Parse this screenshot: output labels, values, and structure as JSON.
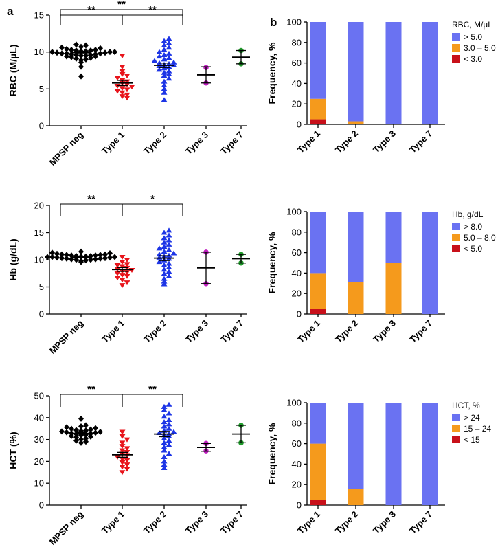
{
  "panel_labels": {
    "a": "a",
    "b": "b"
  },
  "colors": {
    "mpsp_neg": "#000000",
    "type1": "#e8141b",
    "type2": "#1d35e6",
    "type3": "#c01ec0",
    "type7": "#1f9a2a",
    "bar_high": "#6a72f2",
    "bar_mid": "#f59a1c",
    "bar_low": "#c8101a"
  },
  "chart_data": [
    {
      "type": "scatter",
      "panel": "a",
      "ylabel": "RBC (M/µL)",
      "ylim": [
        0,
        15
      ],
      "yticks": [
        0,
        5,
        10,
        15
      ],
      "categories": [
        "MPSP neg",
        "Type 1",
        "Type 2",
        "Type 3",
        "Type 7"
      ],
      "groups": [
        {
          "name": "MPSP neg",
          "marker": "diamond",
          "color": "#000000",
          "mean": 9.9,
          "sem": 0.15,
          "values": [
            6.7,
            8.0,
            8.6,
            8.9,
            9.0,
            9.1,
            9.2,
            9.3,
            9.4,
            9.4,
            9.5,
            9.5,
            9.6,
            9.6,
            9.7,
            9.7,
            9.8,
            9.8,
            9.8,
            9.9,
            9.9,
            10.0,
            10.0,
            10.0,
            10.1,
            10.1,
            10.2,
            10.2,
            10.3,
            10.3,
            10.4,
            10.5,
            10.6,
            10.7,
            10.9,
            11.0
          ]
        },
        {
          "name": "Type 1",
          "marker": "triangle-down",
          "color": "#e8141b",
          "mean": 5.8,
          "sem": 0.35,
          "values": [
            9.5,
            8.0,
            7.4,
            7.0,
            6.8,
            6.5,
            6.2,
            6.0,
            5.8,
            5.6,
            5.4,
            5.3,
            5.1,
            4.9,
            4.7,
            4.5,
            4.2,
            4.0,
            3.8
          ]
        },
        {
          "name": "Type 2",
          "marker": "triangle-up",
          "color": "#1d35e6",
          "mean": 8.2,
          "sem": 0.3,
          "values": [
            3.5,
            4.5,
            5.0,
            5.5,
            6.0,
            6.4,
            6.8,
            7.0,
            7.2,
            7.4,
            7.6,
            7.8,
            8.0,
            8.1,
            8.2,
            8.3,
            8.4,
            8.5,
            8.6,
            8.8,
            9.0,
            9.2,
            9.4,
            9.6,
            9.8,
            10.0,
            10.3,
            10.6,
            10.9,
            11.2,
            11.5,
            11.8
          ]
        },
        {
          "name": "Type 3",
          "marker": "circle",
          "color": "#c01ec0",
          "mean": 6.9,
          "error": 1.1,
          "values": [
            7.9,
            5.8
          ]
        },
        {
          "name": "Type 7",
          "marker": "circle",
          "color": "#1f9a2a",
          "mean": 9.3,
          "error": 0.9,
          "values": [
            10.2,
            8.4
          ]
        }
      ],
      "significance": [
        {
          "from": 0,
          "to": 1,
          "label": "**"
        },
        {
          "from": 1,
          "to": 2,
          "label": "**"
        },
        {
          "from": 0,
          "to": 2,
          "label": "**"
        }
      ]
    },
    {
      "type": "stacked_bar",
      "panel": "b",
      "ylabel": "Frequency, %",
      "ylim": [
        0,
        100
      ],
      "yticks": [
        0,
        20,
        40,
        60,
        80,
        100
      ],
      "categories": [
        "Type 1",
        "Type 2",
        "Type 3",
        "Type 7"
      ],
      "legend_title": "RBC, M/µL",
      "series": [
        {
          "name": "> 5.0",
          "color": "#6a72f2",
          "values": [
            75,
            97,
            100,
            100
          ]
        },
        {
          "name": "3.0 – 5.0",
          "color": "#f59a1c",
          "values": [
            20,
            3,
            0,
            0
          ]
        },
        {
          "name": "< 3.0",
          "color": "#c8101a",
          "values": [
            5,
            0,
            0,
            0
          ]
        }
      ]
    },
    {
      "type": "scatter",
      "panel": "a",
      "ylabel": "Hb (g/dL)",
      "ylim": [
        0,
        20
      ],
      "yticks": [
        0,
        5,
        10,
        15,
        20
      ],
      "categories": [
        "MPSP neg",
        "Type 1",
        "Type 2",
        "Type 3",
        "Type 7"
      ],
      "groups": [
        {
          "name": "MPSP neg",
          "marker": "diamond",
          "color": "#000000",
          "mean": 10.5,
          "sem": 0.12,
          "values": [
            9.6,
            9.8,
            9.9,
            10.0,
            10.0,
            10.1,
            10.1,
            10.2,
            10.2,
            10.3,
            10.3,
            10.4,
            10.4,
            10.5,
            10.5,
            10.5,
            10.6,
            10.6,
            10.7,
            10.7,
            10.8,
            10.8,
            10.9,
            10.9,
            11.0,
            11.0,
            11.1,
            11.2,
            11.3,
            11.5
          ]
        },
        {
          "name": "Type 1",
          "marker": "triangle-down",
          "color": "#e8141b",
          "mean": 8.2,
          "sem": 0.35,
          "values": [
            10.5,
            10.0,
            9.6,
            9.2,
            9.0,
            8.8,
            8.5,
            8.3,
            8.1,
            7.9,
            7.7,
            7.5,
            7.2,
            7.0,
            6.7,
            6.3,
            5.8,
            5.3
          ]
        },
        {
          "name": "Type 2",
          "marker": "triangle-up",
          "color": "#1d35e6",
          "mean": 10.3,
          "sem": 0.45,
          "values": [
            5.5,
            6.0,
            6.5,
            7.0,
            7.4,
            7.8,
            8.2,
            8.6,
            9.0,
            9.3,
            9.6,
            9.9,
            10.2,
            10.4,
            10.6,
            10.8,
            11.0,
            11.2,
            11.5,
            11.8,
            12.1,
            12.4,
            12.8,
            13.2,
            13.6,
            14.0,
            14.5,
            15.0,
            15.4
          ]
        },
        {
          "name": "Type 3",
          "marker": "circle",
          "color": "#c01ec0",
          "mean": 8.5,
          "error": 2.9,
          "values": [
            11.4,
            5.6
          ]
        },
        {
          "name": "Type 7",
          "marker": "circle",
          "color": "#1f9a2a",
          "mean": 10.2,
          "error": 0.8,
          "values": [
            11.0,
            9.4
          ]
        }
      ],
      "significance": [
        {
          "from": 0,
          "to": 1,
          "label": "**"
        },
        {
          "from": 1,
          "to": 2,
          "label": "*"
        }
      ]
    },
    {
      "type": "stacked_bar",
      "panel": "b",
      "ylabel": "Frequency, %",
      "ylim": [
        0,
        100
      ],
      "yticks": [
        0,
        20,
        40,
        60,
        80,
        100
      ],
      "categories": [
        "Type 1",
        "Type 2",
        "Type 3",
        "Type 7"
      ],
      "legend_title": "Hb, g/dL",
      "series": [
        {
          "name": "> 8.0",
          "color": "#6a72f2",
          "values": [
            60,
            69,
            50,
            100
          ]
        },
        {
          "name": "5.0 – 8.0",
          "color": "#f59a1c",
          "values": [
            35,
            31,
            50,
            0
          ]
        },
        {
          "name": "< 5.0",
          "color": "#c8101a",
          "values": [
            5,
            0,
            0,
            0
          ]
        }
      ]
    },
    {
      "type": "scatter",
      "panel": "a",
      "ylabel": "HCT (%)",
      "ylim": [
        0,
        50
      ],
      "yticks": [
        0,
        10,
        20,
        30,
        40,
        50
      ],
      "categories": [
        "MPSP neg",
        "Type 1",
        "Type 2",
        "Type 3",
        "Type 7"
      ],
      "groups": [
        {
          "name": "MPSP neg",
          "marker": "diamond",
          "color": "#000000",
          "mean": 32.8,
          "sem": 0.4,
          "values": [
            28.5,
            29.0,
            29.5,
            30.0,
            30.5,
            31.0,
            31.3,
            31.6,
            31.9,
            32.2,
            32.5,
            32.7,
            32.9,
            33.1,
            33.3,
            33.5,
            33.7,
            33.9,
            34.1,
            34.3,
            34.6,
            34.9,
            35.2,
            35.6,
            36.0,
            36.5,
            39.5
          ]
        },
        {
          "name": "Type 1",
          "marker": "triangle-down",
          "color": "#e8141b",
          "mean": 23.0,
          "sem": 1.1,
          "values": [
            33.5,
            31.5,
            30.0,
            28.5,
            27.0,
            26.0,
            25.0,
            24.2,
            23.5,
            22.8,
            22.0,
            21.2,
            20.5,
            19.5,
            18.5,
            17.5,
            16.5,
            15.0
          ]
        },
        {
          "name": "Type 2",
          "marker": "triangle-up",
          "color": "#1d35e6",
          "mean": 32.5,
          "sem": 1.2,
          "values": [
            17.0,
            18.5,
            20.0,
            22.0,
            23.5,
            25.0,
            26.5,
            27.5,
            28.5,
            29.5,
            30.5,
            31.5,
            32.0,
            32.5,
            33.0,
            33.5,
            34.0,
            35.0,
            36.0,
            37.0,
            38.0,
            39.0,
            40.5,
            42.0,
            43.5,
            45.0,
            46.0
          ]
        },
        {
          "name": "Type 3",
          "marker": "circle",
          "color": "#c01ec0",
          "mean": 26.4,
          "error": 1.8,
          "values": [
            28.2,
            24.8
          ]
        },
        {
          "name": "Type 7",
          "marker": "circle",
          "color": "#1f9a2a",
          "mean": 32.5,
          "error": 4.0,
          "values": [
            36.5,
            28.5
          ]
        }
      ],
      "significance": [
        {
          "from": 0,
          "to": 1,
          "label": "**"
        },
        {
          "from": 1,
          "to": 2,
          "label": "**"
        }
      ]
    },
    {
      "type": "stacked_bar",
      "panel": "b",
      "ylabel": "Frequency, %",
      "ylim": [
        0,
        100
      ],
      "yticks": [
        0,
        20,
        40,
        60,
        80,
        100
      ],
      "categories": [
        "Type 1",
        "Type 2",
        "Type 3",
        "Type 7"
      ],
      "legend_title": "HCT, %",
      "series": [
        {
          "name": "> 24",
          "color": "#6a72f2",
          "values": [
            40,
            84,
            100,
            100
          ]
        },
        {
          "name": "15 – 24",
          "color": "#f59a1c",
          "values": [
            55,
            16,
            0,
            0
          ]
        },
        {
          "name": "< 15",
          "color": "#c8101a",
          "values": [
            5,
            0,
            0,
            0
          ]
        }
      ]
    }
  ]
}
